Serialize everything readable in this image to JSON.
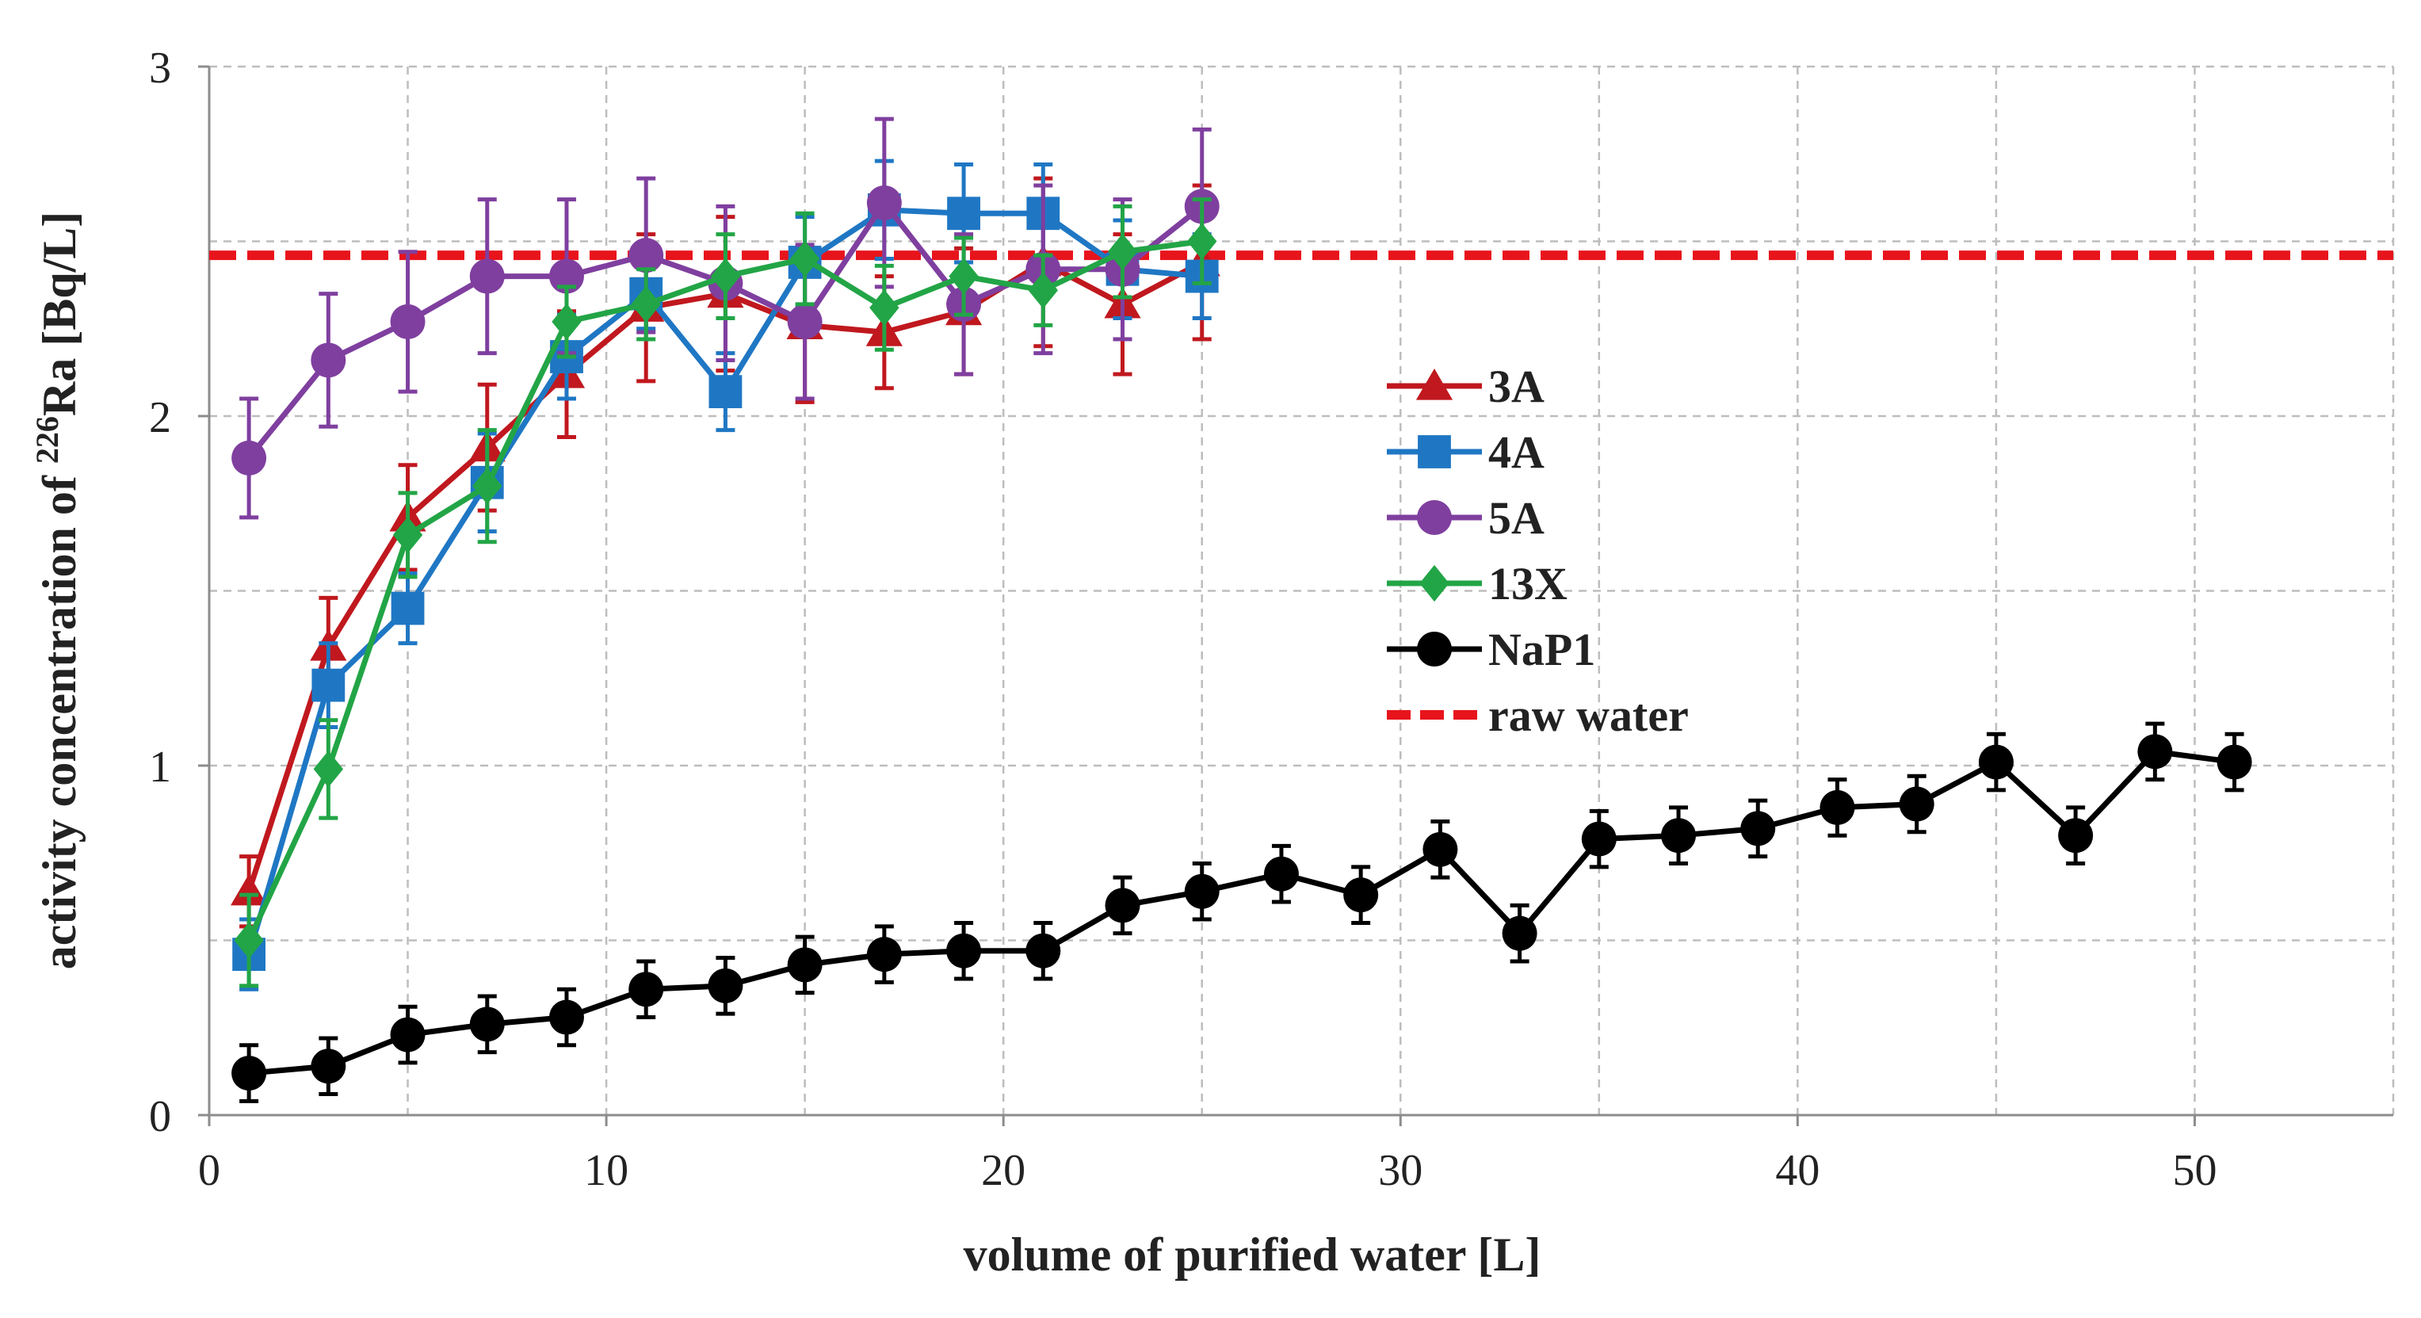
{
  "chart_data": {
    "type": "line",
    "xlabel": "volume of purified water [L]",
    "ylabel_parts": [
      "activity concentration of ",
      "226",
      "Ra [Bq/L]"
    ],
    "xlim": [
      0,
      55
    ],
    "ylim": [
      0,
      3
    ],
    "x_ticks": [
      0,
      10,
      20,
      30,
      40,
      50
    ],
    "y_ticks": [
      0,
      1,
      2,
      3
    ],
    "grid": true,
    "legend_position": "center-right",
    "series": [
      {
        "name": "3A",
        "color": "#c0181e",
        "marker": "triangle",
        "x": [
          1,
          3,
          5,
          7,
          9,
          11,
          13,
          15,
          17,
          19,
          21,
          23,
          25
        ],
        "y": [
          0.64,
          1.34,
          1.71,
          1.91,
          2.12,
          2.31,
          2.35,
          2.26,
          2.24,
          2.3,
          2.44,
          2.32,
          2.44
        ],
        "err": [
          0.1,
          0.14,
          0.15,
          0.18,
          0.18,
          0.21,
          0.22,
          0.22,
          0.16,
          0.18,
          0.24,
          0.2,
          0.22
        ]
      },
      {
        "name": "4A",
        "color": "#1f77c4",
        "marker": "square",
        "x": [
          1,
          3,
          5,
          7,
          9,
          11,
          13,
          15,
          17,
          19,
          21,
          23,
          25
        ],
        "y": [
          0.46,
          1.23,
          1.45,
          1.81,
          2.17,
          2.35,
          2.07,
          2.44,
          2.59,
          2.58,
          2.58,
          2.42,
          2.4
        ],
        "err": [
          0.1,
          0.12,
          0.1,
          0.14,
          0.12,
          0.1,
          0.11,
          0.13,
          0.14,
          0.14,
          0.14,
          0.14,
          0.12
        ]
      },
      {
        "name": "5A",
        "color": "#7f3f9f",
        "marker": "circle",
        "x": [
          1,
          3,
          5,
          7,
          9,
          11,
          13,
          15,
          17,
          19,
          21,
          23,
          25
        ],
        "y": [
          1.88,
          2.16,
          2.27,
          2.4,
          2.4,
          2.46,
          2.38,
          2.27,
          2.61,
          2.32,
          2.42,
          2.42,
          2.6
        ],
        "err": [
          0.17,
          0.19,
          0.2,
          0.22,
          0.22,
          0.22,
          0.22,
          0.22,
          0.24,
          0.2,
          0.24,
          0.2,
          0.22
        ]
      },
      {
        "name": "13X",
        "color": "#22a546",
        "marker": "diamond",
        "x": [
          1,
          3,
          5,
          7,
          9,
          11,
          13,
          15,
          17,
          19,
          21,
          23,
          25
        ],
        "y": [
          0.5,
          0.99,
          1.66,
          1.8,
          2.27,
          2.32,
          2.4,
          2.45,
          2.31,
          2.4,
          2.36,
          2.47,
          2.5
        ],
        "err": [
          0.13,
          0.14,
          0.12,
          0.16,
          0.1,
          0.1,
          0.12,
          0.13,
          0.12,
          0.11,
          0.1,
          0.13,
          0.12
        ]
      },
      {
        "name": "NaP1",
        "color": "#000000",
        "marker": "circle",
        "x": [
          1,
          3,
          5,
          7,
          9,
          11,
          13,
          15,
          17,
          19,
          21,
          23,
          25,
          27,
          29,
          31,
          33,
          35,
          37,
          39,
          41,
          43,
          45,
          47,
          49,
          51
        ],
        "y": [
          0.12,
          0.14,
          0.23,
          0.26,
          0.28,
          0.36,
          0.37,
          0.43,
          0.46,
          0.47,
          0.47,
          0.6,
          0.64,
          0.69,
          0.63,
          0.76,
          0.52,
          0.79,
          0.8,
          0.82,
          0.88,
          0.89,
          1.01,
          0.8,
          1.04,
          1.01
        ],
        "err": [
          0.08,
          0.08,
          0.08,
          0.08,
          0.08,
          0.08,
          0.08,
          0.08,
          0.08,
          0.08,
          0.08,
          0.08,
          0.08,
          0.08,
          0.08,
          0.08,
          0.08,
          0.08,
          0.08,
          0.08,
          0.08,
          0.08,
          0.08,
          0.08,
          0.08,
          0.08
        ]
      }
    ],
    "reference_line": {
      "name": "raw water",
      "y": 2.46,
      "color": "#e8141c",
      "style": "dashed"
    }
  }
}
